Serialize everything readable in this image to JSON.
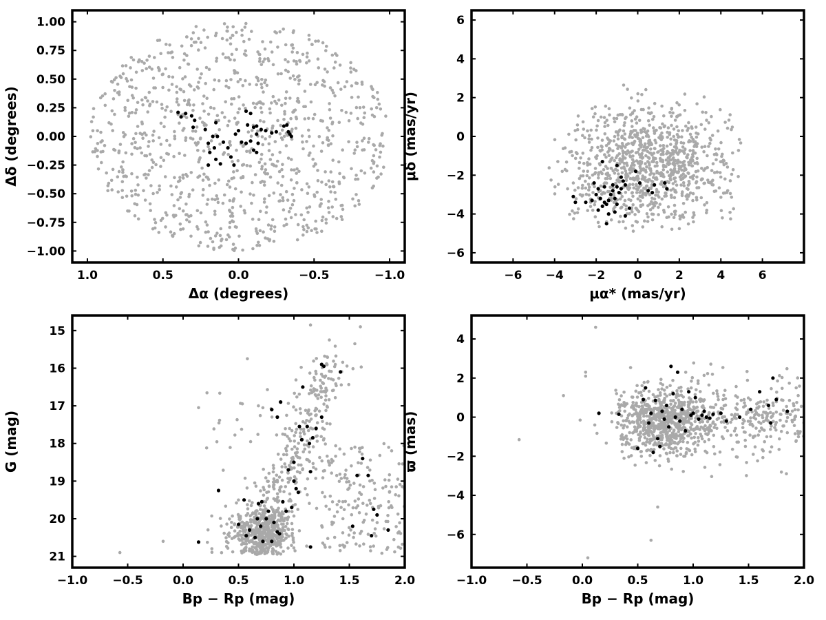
{
  "figure": {
    "background": "#ffffff",
    "field_color": "#a9a9a9",
    "member_color": "#000000"
  },
  "chart_data": [
    {
      "id": "position",
      "type": "scatter",
      "xlabel": "Δα (degrees)",
      "ylabel": "Δδ (degrees)",
      "xlim": [
        1.1,
        -1.1
      ],
      "ylim": [
        -1.1,
        1.1
      ],
      "xticks": [
        1.0,
        0.5,
        0.0,
        -0.5,
        -1.0
      ],
      "xtick_labels": [
        "1.0",
        "0.5",
        "0.0",
        "−0.5",
        "−1.0"
      ],
      "yticks": [
        1.0,
        0.75,
        0.5,
        0.25,
        0.0,
        -0.25,
        -0.5,
        -0.75,
        -1.0
      ],
      "ytick_labels": [
        "1.00",
        "0.75",
        "0.50",
        "0.25",
        "0.00",
        "−0.25",
        "−0.50",
        "−0.75",
        "−1.00"
      ],
      "field": {
        "count": 1000,
        "distribution": "uniform disk",
        "center": [
          0.0,
          0.0
        ],
        "radius": 1.0
      },
      "members": [
        {
          "x": 0.4,
          "y": 0.21
        },
        {
          "x": 0.38,
          "y": 0.17
        },
        {
          "x": 0.35,
          "y": 0.2
        },
        {
          "x": 0.31,
          "y": 0.18
        },
        {
          "x": 0.29,
          "y": 0.14
        },
        {
          "x": 0.3,
          "y": 0.08
        },
        {
          "x": 0.22,
          "y": 0.06
        },
        {
          "x": 0.15,
          "y": 0.12
        },
        {
          "x": 0.17,
          "y": 0.0
        },
        {
          "x": 0.14,
          "y": 0.0
        },
        {
          "x": 0.2,
          "y": -0.06
        },
        {
          "x": 0.16,
          "y": -0.1
        },
        {
          "x": 0.19,
          "y": -0.14
        },
        {
          "x": 0.15,
          "y": -0.2
        },
        {
          "x": 0.12,
          "y": -0.24
        },
        {
          "x": 0.2,
          "y": -0.25
        },
        {
          "x": 0.1,
          "y": -0.05
        },
        {
          "x": 0.07,
          "y": -0.1
        },
        {
          "x": 0.05,
          "y": -0.18
        },
        {
          "x": 0.03,
          "y": -0.25
        },
        {
          "x": 0.02,
          "y": 0.02
        },
        {
          "x": 0.0,
          "y": 0.05
        },
        {
          "x": -0.02,
          "y": -0.05
        },
        {
          "x": -0.05,
          "y": 0.22
        },
        {
          "x": -0.08,
          "y": 0.2
        },
        {
          "x": -0.06,
          "y": 0.1
        },
        {
          "x": -0.1,
          "y": 0.08
        },
        {
          "x": -0.12,
          "y": 0.09
        },
        {
          "x": -0.15,
          "y": 0.06
        },
        {
          "x": -0.08,
          "y": -0.04
        },
        {
          "x": -0.1,
          "y": -0.12
        },
        {
          "x": -0.12,
          "y": -0.14
        },
        {
          "x": -0.05,
          "y": -0.06
        },
        {
          "x": -0.13,
          "y": -0.06
        },
        {
          "x": -0.18,
          "y": 0.05
        },
        {
          "x": -0.22,
          "y": 0.03
        },
        {
          "x": -0.25,
          "y": 0.04
        },
        {
          "x": -0.3,
          "y": 0.09
        },
        {
          "x": -0.32,
          "y": 0.1
        },
        {
          "x": -0.33,
          "y": 0.04
        },
        {
          "x": -0.34,
          "y": 0.02
        },
        {
          "x": -0.35,
          "y": 0.0
        },
        {
          "x": -0.12,
          "y": 0.02
        }
      ]
    },
    {
      "id": "proper-motion",
      "type": "scatter",
      "xlabel": "μα* (mas/yr)",
      "ylabel": "μδ (mas/yr)",
      "xlim": [
        -8,
        8
      ],
      "ylim": [
        -6.5,
        6.5
      ],
      "xticks": [
        -6,
        -4,
        -2,
        0,
        2,
        4,
        6
      ],
      "xtick_labels": [
        "−6",
        "−4",
        "−2",
        "0",
        "2",
        "4",
        "6"
      ],
      "yticks": [
        -6,
        -4,
        -2,
        0,
        2,
        4,
        6
      ],
      "ytick_labels": [
        "−6",
        "−4",
        "−2",
        "0",
        "2",
        "4",
        "6"
      ],
      "field": {
        "count": 1000,
        "distribution": "elliptical cloud",
        "center": [
          0.5,
          -1.5
        ],
        "spread": [
          2.0,
          1.6
        ],
        "xrange": [
          -4.8,
          5.0
        ],
        "yrange": [
          -4.9,
          3.9
        ]
      },
      "members": [
        {
          "x": -1.8,
          "y": -3.2
        },
        {
          "x": -1.6,
          "y": -3.4
        },
        {
          "x": -1.5,
          "y": -3.5
        },
        {
          "x": -1.7,
          "y": -3.6
        },
        {
          "x": -1.4,
          "y": -3.3
        },
        {
          "x": -1.3,
          "y": -3.0
        },
        {
          "x": -1.2,
          "y": -2.8
        },
        {
          "x": -1.1,
          "y": -3.2
        },
        {
          "x": -1.4,
          "y": -4.0
        },
        {
          "x": -1.5,
          "y": -4.5
        },
        {
          "x": -1.2,
          "y": -2.5
        },
        {
          "x": -1.0,
          "y": -2.6
        },
        {
          "x": -0.9,
          "y": -2.9
        },
        {
          "x": -0.8,
          "y": -2.7
        },
        {
          "x": -0.7,
          "y": -2.3
        },
        {
          "x": -0.6,
          "y": -2.5
        },
        {
          "x": -0.8,
          "y": -2.1
        },
        {
          "x": -1.0,
          "y": -1.5
        },
        {
          "x": -1.7,
          "y": -1.3
        },
        {
          "x": -1.9,
          "y": -2.7
        },
        {
          "x": -2.0,
          "y": -3.0
        },
        {
          "x": -2.2,
          "y": -3.3
        },
        {
          "x": -2.5,
          "y": -3.4
        },
        {
          "x": -3.1,
          "y": -3.1
        },
        {
          "x": -3.0,
          "y": -3.4
        },
        {
          "x": -1.0,
          "y": -3.5
        },
        {
          "x": -0.6,
          "y": -4.1
        },
        {
          "x": -0.4,
          "y": -3.7
        },
        {
          "x": -0.1,
          "y": -1.8
        },
        {
          "x": 0.1,
          "y": -2.4
        },
        {
          "x": 0.5,
          "y": -2.8
        },
        {
          "x": 0.7,
          "y": -2.9
        },
        {
          "x": 0.8,
          "y": -2.5
        },
        {
          "x": 1.3,
          "y": -2.4
        },
        {
          "x": 1.4,
          "y": -2.7
        },
        {
          "x": -1.6,
          "y": -2.6
        },
        {
          "x": -2.1,
          "y": -2.4
        },
        {
          "x": -1.9,
          "y": -3.8
        },
        {
          "x": -1.1,
          "y": -3.9
        }
      ]
    },
    {
      "id": "cmd-g",
      "type": "scatter",
      "xlabel": "Bp − Rp (mag)",
      "ylabel": "G (mag)",
      "xlim": [
        -1.0,
        2.0
      ],
      "ylim": [
        21.3,
        14.6
      ],
      "xticks": [
        -1.0,
        -0.5,
        0.0,
        0.5,
        1.0,
        1.5,
        2.0
      ],
      "xtick_labels": [
        "−1.0",
        "−0.5",
        "0.0",
        "0.5",
        "1.0",
        "1.5",
        "2.0"
      ],
      "yticks": [
        21,
        20,
        19,
        18,
        17,
        16,
        15
      ],
      "ytick_labels": [
        "21",
        "20",
        "19",
        "18",
        "17",
        "16",
        "15"
      ],
      "field": {
        "count": 1000,
        "distribution": "color-magnitude diagram",
        "clump": [
          0.72,
          20.4
        ],
        "ymax": 20.95
      },
      "members": [
        {
          "x": 0.14,
          "y": 20.62
        },
        {
          "x": 0.32,
          "y": 19.25
        },
        {
          "x": 0.5,
          "y": 20.15
        },
        {
          "x": 0.55,
          "y": 19.5
        },
        {
          "x": 0.57,
          "y": 20.45
        },
        {
          "x": 0.6,
          "y": 20.3
        },
        {
          "x": 0.65,
          "y": 20.5
        },
        {
          "x": 0.67,
          "y": 20.0
        },
        {
          "x": 0.68,
          "y": 19.6
        },
        {
          "x": 0.7,
          "y": 20.2
        },
        {
          "x": 0.71,
          "y": 19.55
        },
        {
          "x": 0.72,
          "y": 20.6
        },
        {
          "x": 0.75,
          "y": 20.0
        },
        {
          "x": 0.77,
          "y": 19.8
        },
        {
          "x": 0.8,
          "y": 20.6
        },
        {
          "x": 0.82,
          "y": 20.1
        },
        {
          "x": 0.85,
          "y": 20.35
        },
        {
          "x": 0.87,
          "y": 20.4
        },
        {
          "x": 0.9,
          "y": 19.55
        },
        {
          "x": 0.93,
          "y": 19.8
        },
        {
          "x": 0.95,
          "y": 18.7
        },
        {
          "x": 0.98,
          "y": 19.7
        },
        {
          "x": 1.0,
          "y": 19.0
        },
        {
          "x": 1.02,
          "y": 19.2
        },
        {
          "x": 1.04,
          "y": 19.3
        },
        {
          "x": 1.0,
          "y": 18.5
        },
        {
          "x": 1.05,
          "y": 17.55
        },
        {
          "x": 1.07,
          "y": 17.9
        },
        {
          "x": 1.08,
          "y": 16.5
        },
        {
          "x": 1.12,
          "y": 17.55
        },
        {
          "x": 1.14,
          "y": 18.0
        },
        {
          "x": 1.15,
          "y": 18.75
        },
        {
          "x": 1.17,
          "y": 17.85
        },
        {
          "x": 1.2,
          "y": 17.6
        },
        {
          "x": 1.25,
          "y": 17.3
        },
        {
          "x": 1.25,
          "y": 15.9
        },
        {
          "x": 1.27,
          "y": 15.95
        },
        {
          "x": 1.42,
          "y": 16.1
        },
        {
          "x": 0.8,
          "y": 17.1
        },
        {
          "x": 0.85,
          "y": 17.3
        },
        {
          "x": 0.88,
          "y": 16.9
        },
        {
          "x": 1.15,
          "y": 20.75
        },
        {
          "x": 1.53,
          "y": 20.2
        },
        {
          "x": 1.57,
          "y": 18.85
        },
        {
          "x": 1.62,
          "y": 18.4
        },
        {
          "x": 1.67,
          "y": 18.85
        },
        {
          "x": 1.7,
          "y": 20.45
        },
        {
          "x": 1.72,
          "y": 19.75
        },
        {
          "x": 1.75,
          "y": 19.9
        },
        {
          "x": 1.85,
          "y": 20.3
        }
      ]
    },
    {
      "id": "cmd-parallax",
      "type": "scatter",
      "xlabel": "Bp − Rp (mag)",
      "ylabel": "ϖ (mas)",
      "xlim": [
        -1.0,
        2.0
      ],
      "ylim": [
        -7.7,
        5.2
      ],
      "xticks": [
        -1.0,
        -0.5,
        0.0,
        0.5,
        1.0,
        1.5,
        2.0
      ],
      "xtick_labels": [
        "−1.0",
        "−0.5",
        "0.0",
        "0.5",
        "1.0",
        "1.5",
        "2.0"
      ],
      "yticks": [
        4,
        2,
        0,
        -2,
        -4,
        -6
      ],
      "ytick_labels": [
        "4",
        "2",
        "0",
        "−2",
        "−4",
        "−6"
      ],
      "field": {
        "count": 1000,
        "distribution": "parallax band",
        "center": [
          0.75,
          -0.3
        ]
      },
      "members": [
        {
          "x": 0.15,
          "y": 0.2
        },
        {
          "x": 0.33,
          "y": 0.15
        },
        {
          "x": 0.5,
          "y": -1.6
        },
        {
          "x": 0.55,
          "y": 0.9
        },
        {
          "x": 0.57,
          "y": 1.5
        },
        {
          "x": 0.6,
          "y": -0.3
        },
        {
          "x": 0.62,
          "y": 0.2
        },
        {
          "x": 0.64,
          "y": -1.8
        },
        {
          "x": 0.66,
          "y": 0.85
        },
        {
          "x": 0.68,
          "y": -1.1
        },
        {
          "x": 0.7,
          "y": -1.5
        },
        {
          "x": 0.72,
          "y": 0.3
        },
        {
          "x": 0.74,
          "y": -0.1
        },
        {
          "x": 0.76,
          "y": 0.6
        },
        {
          "x": 0.78,
          "y": -0.5
        },
        {
          "x": 0.8,
          "y": 2.6
        },
        {
          "x": 0.82,
          "y": 1.2
        },
        {
          "x": 0.84,
          "y": 0.0
        },
        {
          "x": 0.86,
          "y": 2.3
        },
        {
          "x": 0.88,
          "y": -0.2
        },
        {
          "x": 0.9,
          "y": 0.4
        },
        {
          "x": 0.93,
          "y": -0.7
        },
        {
          "x": 0.96,
          "y": 1.3
        },
        {
          "x": 0.98,
          "y": 0.1
        },
        {
          "x": 1.0,
          "y": 0.2
        },
        {
          "x": 1.02,
          "y": 1.0
        },
        {
          "x": 1.05,
          "y": -0.1
        },
        {
          "x": 1.08,
          "y": 0.1
        },
        {
          "x": 1.1,
          "y": 0.3
        },
        {
          "x": 1.12,
          "y": 0.0
        },
        {
          "x": 1.15,
          "y": -0.05
        },
        {
          "x": 1.18,
          "y": 0.15
        },
        {
          "x": 1.25,
          "y": 0.2
        },
        {
          "x": 1.3,
          "y": -0.2
        },
        {
          "x": 1.42,
          "y": 0.0
        },
        {
          "x": 1.52,
          "y": 0.4
        },
        {
          "x": 1.6,
          "y": 1.3
        },
        {
          "x": 1.68,
          "y": 0.6
        },
        {
          "x": 1.7,
          "y": -0.3
        },
        {
          "x": 1.72,
          "y": 2.0
        },
        {
          "x": 1.75,
          "y": 0.9
        },
        {
          "x": 1.85,
          "y": 0.3
        }
      ]
    }
  ]
}
